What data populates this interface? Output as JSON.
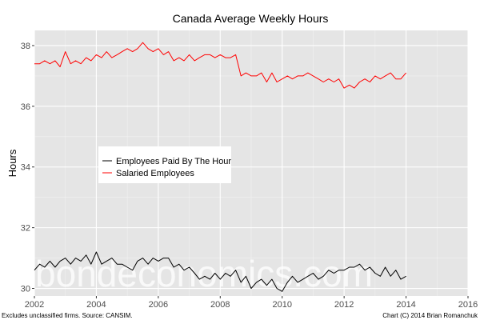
{
  "chart_data": {
    "type": "line",
    "title": "Canada Average Weekly Hours",
    "xlabel": "",
    "ylabel": "Hours",
    "xlim": [
      2002,
      2016
    ],
    "ylim": [
      29.75,
      38.5
    ],
    "xticks": [
      2002,
      2004,
      2006,
      2008,
      2010,
      2012,
      2014,
      2016
    ],
    "yticks": [
      30,
      32,
      34,
      36,
      38
    ],
    "xtick_labels": [
      "2002",
      "2004",
      "2006",
      "2008",
      "2010",
      "2012",
      "2014",
      "2016"
    ],
    "ytick_labels": [
      "30",
      "32",
      "34",
      "36",
      "38"
    ],
    "grid": true,
    "legend_position": "center-left",
    "series": [
      {
        "name": "Employees Paid By The Hour",
        "color": "#000000",
        "x": [
          2002.0,
          2002.17,
          2002.33,
          2002.5,
          2002.67,
          2002.83,
          2003.0,
          2003.17,
          2003.33,
          2003.5,
          2003.67,
          2003.83,
          2004.0,
          2004.17,
          2004.33,
          2004.5,
          2004.67,
          2004.83,
          2005.0,
          2005.17,
          2005.33,
          2005.5,
          2005.67,
          2005.83,
          2006.0,
          2006.17,
          2006.33,
          2006.5,
          2006.67,
          2006.83,
          2007.0,
          2007.17,
          2007.33,
          2007.5,
          2007.67,
          2007.83,
          2008.0,
          2008.17,
          2008.33,
          2008.5,
          2008.67,
          2008.83,
          2009.0,
          2009.17,
          2009.33,
          2009.5,
          2009.67,
          2009.83,
          2010.0,
          2010.17,
          2010.33,
          2010.5,
          2010.67,
          2010.83,
          2011.0,
          2011.17,
          2011.33,
          2011.5,
          2011.67,
          2011.83,
          2012.0,
          2012.17,
          2012.33,
          2012.5,
          2012.67,
          2012.83,
          2013.0,
          2013.17,
          2013.33,
          2013.5,
          2013.67,
          2013.83,
          2014.0
        ],
        "y": [
          30.6,
          30.8,
          30.7,
          30.9,
          30.7,
          30.9,
          31.0,
          30.8,
          31.0,
          30.9,
          31.1,
          30.8,
          31.2,
          30.8,
          30.9,
          31.0,
          30.8,
          30.8,
          30.7,
          30.6,
          30.9,
          31.0,
          30.8,
          31.0,
          30.9,
          31.0,
          31.0,
          30.7,
          30.8,
          30.6,
          30.7,
          30.5,
          30.3,
          30.4,
          30.3,
          30.5,
          30.3,
          30.5,
          30.4,
          30.6,
          30.2,
          30.4,
          30.0,
          30.2,
          30.3,
          30.1,
          30.3,
          30.0,
          29.9,
          30.2,
          30.4,
          30.2,
          30.3,
          30.4,
          30.5,
          30.3,
          30.4,
          30.6,
          30.5,
          30.6,
          30.6,
          30.7,
          30.7,
          30.8,
          30.6,
          30.7,
          30.5,
          30.4,
          30.7,
          30.4,
          30.6,
          30.3,
          30.4
        ]
      },
      {
        "name": "Salaried Employees",
        "color": "#ff0000",
        "x": [
          2002.0,
          2002.17,
          2002.33,
          2002.5,
          2002.67,
          2002.83,
          2003.0,
          2003.17,
          2003.33,
          2003.5,
          2003.67,
          2003.83,
          2004.0,
          2004.17,
          2004.33,
          2004.5,
          2004.67,
          2004.83,
          2005.0,
          2005.17,
          2005.33,
          2005.5,
          2005.67,
          2005.83,
          2006.0,
          2006.17,
          2006.33,
          2006.5,
          2006.67,
          2006.83,
          2007.0,
          2007.17,
          2007.33,
          2007.5,
          2007.67,
          2007.83,
          2008.0,
          2008.17,
          2008.33,
          2008.5,
          2008.67,
          2008.83,
          2009.0,
          2009.17,
          2009.33,
          2009.5,
          2009.67,
          2009.83,
          2010.0,
          2010.17,
          2010.33,
          2010.5,
          2010.67,
          2010.83,
          2011.0,
          2011.17,
          2011.33,
          2011.5,
          2011.67,
          2011.83,
          2012.0,
          2012.17,
          2012.33,
          2012.5,
          2012.67,
          2012.83,
          2013.0,
          2013.17,
          2013.33,
          2013.5,
          2013.67,
          2013.83,
          2014.0
        ],
        "y": [
          37.4,
          37.4,
          37.5,
          37.4,
          37.5,
          37.3,
          37.8,
          37.4,
          37.5,
          37.4,
          37.6,
          37.5,
          37.7,
          37.6,
          37.8,
          37.6,
          37.7,
          37.8,
          37.9,
          37.8,
          37.9,
          38.1,
          37.9,
          37.8,
          37.9,
          37.7,
          37.8,
          37.5,
          37.6,
          37.5,
          37.7,
          37.5,
          37.6,
          37.7,
          37.7,
          37.6,
          37.7,
          37.6,
          37.6,
          37.7,
          37.0,
          37.1,
          37.0,
          37.0,
          37.1,
          36.8,
          37.1,
          36.8,
          36.9,
          37.0,
          36.9,
          37.0,
          37.0,
          37.1,
          37.0,
          36.9,
          36.8,
          36.9,
          36.8,
          36.9,
          36.6,
          36.7,
          36.6,
          36.8,
          36.9,
          36.8,
          37.0,
          36.9,
          37.0,
          37.1,
          36.9,
          36.9,
          37.1
        ]
      }
    ]
  },
  "watermark": "bondeconomics.com",
  "footnote_left": "Excludes unclassified firms. Source: CANSIM.",
  "footnote_right": "Chart (C) 2014 Brian Romanchuk",
  "colors": {
    "panel_bg": "#e5e5e5",
    "grid_major": "#ffffff",
    "grid_minor": "#f2f2f2"
  }
}
